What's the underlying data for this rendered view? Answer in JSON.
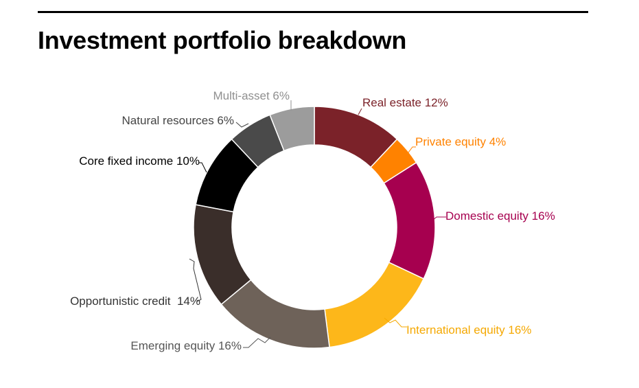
{
  "header": {
    "title": "Investment portfolio breakdown"
  },
  "chart_data": {
    "type": "pie",
    "variant": "donut",
    "title": "Investment portfolio breakdown",
    "unit": "%",
    "slices": [
      {
        "label": "Real estate",
        "value": 12,
        "display": "Real estate 12%",
        "color": "#7B2229",
        "label_color": "#7B2229"
      },
      {
        "label": "Private equity",
        "value": 4,
        "display": "Private equity 4%",
        "color": "#FF8200",
        "label_color": "#FF8200"
      },
      {
        "label": "Domestic equity",
        "value": 16,
        "display": "Domestic equity 16%",
        "color": "#A6004F",
        "label_color": "#A6004F"
      },
      {
        "label": "International equity",
        "value": 16,
        "display": "International equity 16%",
        "color": "#FDB71A",
        "label_color": "#F5A800"
      },
      {
        "label": "Emerging equity",
        "value": 16,
        "display": "Emerging equity 16%",
        "color": "#6E6259",
        "label_color": "#555555"
      },
      {
        "label": "Opportunistic credit",
        "value": 14,
        "display": "Opportunistic credit  14%",
        "color": "#3A2E2A",
        "label_color": "#333333"
      },
      {
        "label": "Core fixed income",
        "value": 10,
        "display": "Core fixed income 10%",
        "color": "#000000",
        "label_color": "#000000"
      },
      {
        "label": "Natural resources",
        "value": 6,
        "display": "Natural resources 6%",
        "color": "#4A4A4A",
        "label_color": "#444444"
      },
      {
        "label": "Multi-asset",
        "value": 6,
        "display": "Multi-asset 6%",
        "color": "#9C9C9C",
        "label_color": "#8F8F8F"
      }
    ],
    "legend": "none",
    "grid": false
  }
}
